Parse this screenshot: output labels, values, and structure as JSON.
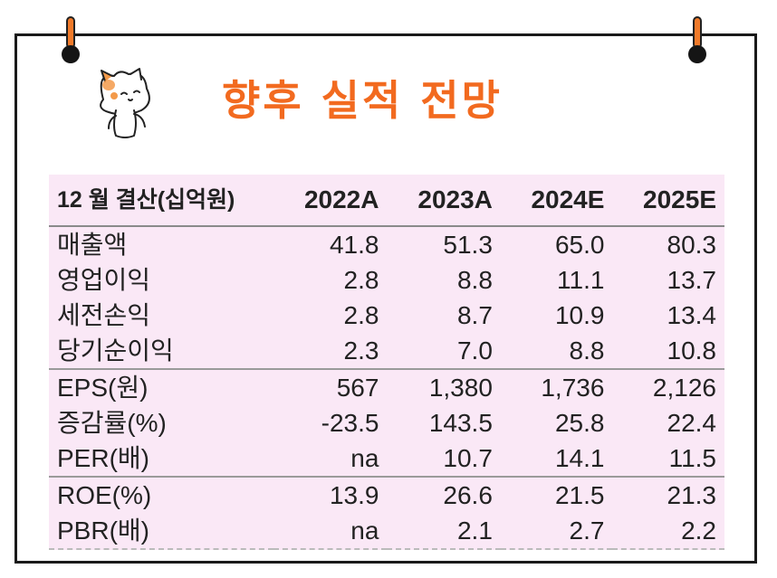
{
  "title": "향후 실적 전망",
  "colors": {
    "accent": "#f26a1f",
    "table_bg": "#fae8f6"
  },
  "table": {
    "header": [
      "12 월 결산(십억원)",
      "2022A",
      "2023A",
      "2024E",
      "2025E"
    ],
    "rows": [
      [
        "매출액",
        "41.8",
        "51.3",
        "65.0",
        "80.3"
      ],
      [
        "영업이익",
        "2.8",
        "8.8",
        "11.1",
        "13.7"
      ],
      [
        "세전손익",
        "2.8",
        "8.7",
        "10.9",
        "13.4"
      ],
      [
        "당기순이익",
        "2.3",
        "7.0",
        "8.8",
        "10.8"
      ],
      [
        "EPS(원)",
        "567",
        "1,380",
        "1,736",
        "2,126"
      ],
      [
        "증감률(%)",
        "-23.5",
        "143.5",
        "25.8",
        "22.4"
      ],
      [
        "PER(배)",
        "na",
        "10.7",
        "14.1",
        "11.5"
      ],
      [
        "ROE(%)",
        "13.9",
        "26.6",
        "21.5",
        "21.3"
      ],
      [
        "PBR(배)",
        "na",
        "2.1",
        "2.7",
        "2.2"
      ]
    ]
  }
}
